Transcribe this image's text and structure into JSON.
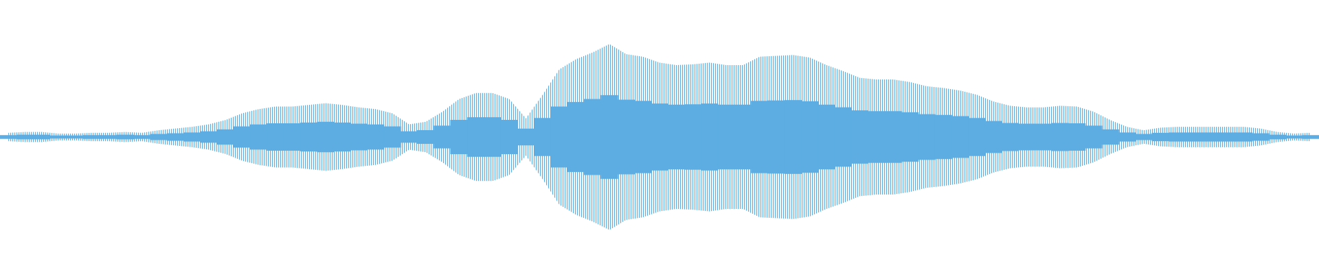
{
  "chart_data": {
    "type": "waveform",
    "color": "#5dade2",
    "ylim": [
      -162,
      162
    ],
    "values": [
      5,
      6,
      6,
      4,
      4,
      5,
      5,
      6,
      5,
      8,
      10,
      12,
      15,
      20,
      28,
      33,
      36,
      36,
      38,
      40,
      38,
      35,
      33,
      28,
      15,
      18,
      30,
      45,
      52,
      52,
      45,
      22,
      50,
      80,
      92,
      100,
      110,
      98,
      95,
      88,
      85,
      86,
      88,
      85,
      85,
      95,
      96,
      97,
      94,
      85,
      78,
      70,
      68,
      68,
      65,
      60,
      58,
      55,
      50,
      42,
      37,
      35,
      35,
      37,
      36,
      30,
      20,
      12,
      8,
      11,
      12,
      12,
      12,
      12,
      12,
      10,
      6,
      4,
      5
    ]
  }
}
